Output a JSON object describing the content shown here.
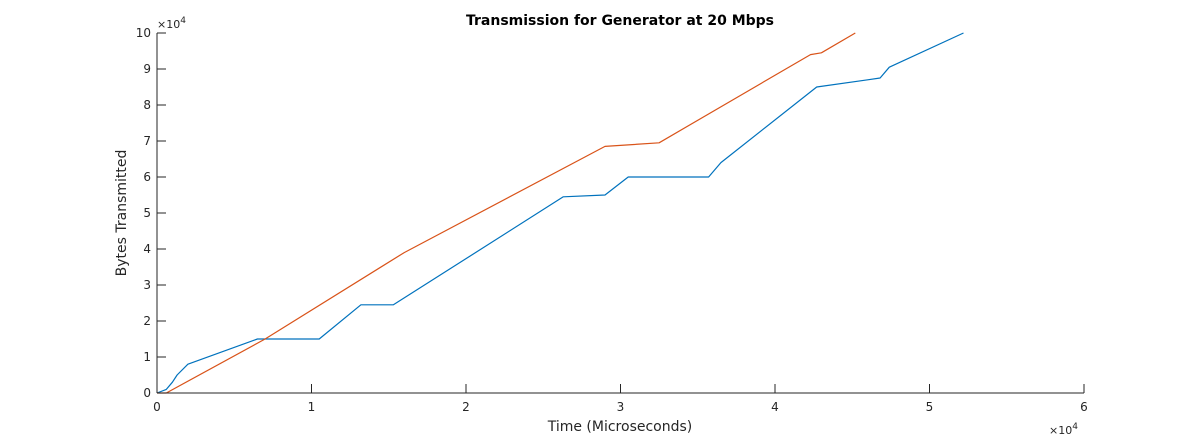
{
  "chart_data": {
    "type": "line",
    "title": "Transmission for Generator at 20 Mbps",
    "xlabel": "Time (Microseconds)",
    "ylabel": "Bytes Transmitted",
    "xlim": [
      0,
      6
    ],
    "ylim": [
      0,
      10
    ],
    "x_multiplier": {
      "prefix": "×10",
      "exp": "4"
    },
    "y_multiplier": {
      "prefix": "×10",
      "exp": "4"
    },
    "x_ticks": [
      "0",
      "1",
      "2",
      "3",
      "4",
      "5",
      "6"
    ],
    "y_ticks": [
      "0",
      "1",
      "2",
      "3",
      "4",
      "5",
      "6",
      "7",
      "8",
      "9",
      "10"
    ],
    "grid": false,
    "series": [
      {
        "color": "#0072BD",
        "x": [
          0,
          0.06,
          0.1,
          0.13,
          0.2,
          0.65,
          1.05,
          1.32,
          1.53,
          2.63,
          2.9,
          3.05,
          3.57,
          3.65,
          4.27,
          4.6,
          4.68,
          4.74,
          5.22
        ],
        "y": [
          0,
          0.1,
          0.3,
          0.5,
          0.8,
          1.5,
          1.5,
          2.45,
          2.45,
          5.45,
          5.5,
          6.0,
          6.0,
          6.4,
          8.5,
          8.7,
          8.75,
          9.05,
          10.0
        ]
      },
      {
        "color": "#D95319",
        "x": [
          0,
          0.06,
          0.7,
          1.6,
          2.9,
          3.25,
          4.23,
          4.3,
          4.52
        ],
        "y": [
          0,
          0.0,
          1.5,
          3.9,
          6.85,
          6.95,
          9.4,
          9.45,
          10.0
        ]
      }
    ]
  }
}
